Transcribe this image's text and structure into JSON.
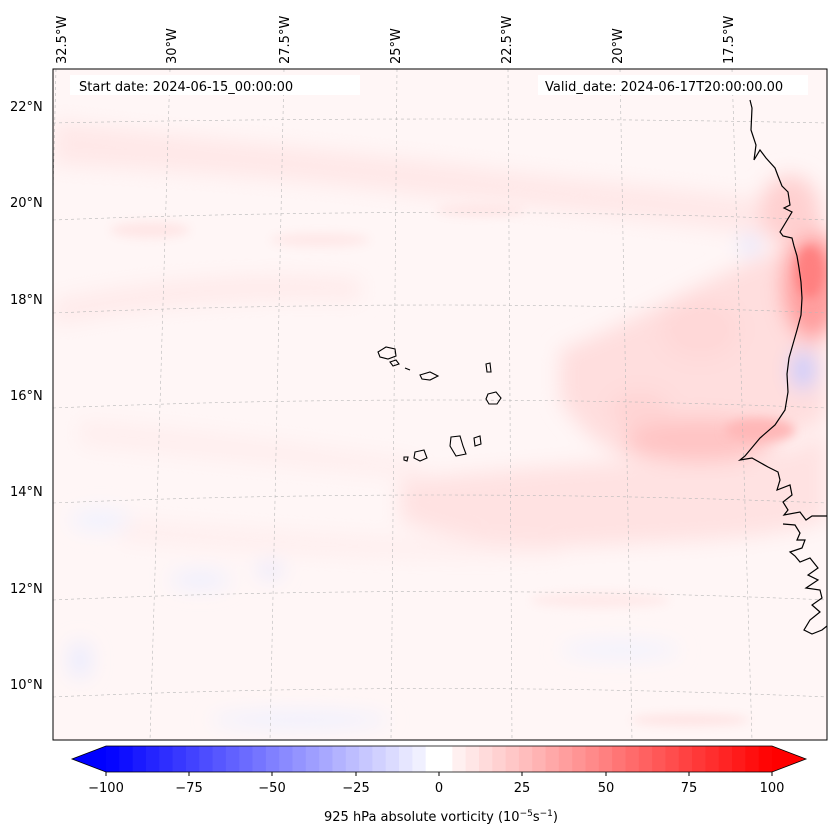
{
  "header": {
    "start_date": "Start date: 2024-06-15_00:00:00",
    "valid_date": "Valid_date: 2024-06-17T20:00:00.00"
  },
  "longitude_labels": [
    "32.5°W",
    "30°W",
    "27.5°W",
    "25°W",
    "22.5°W",
    "20°W",
    "17.5°W"
  ],
  "latitude_labels": [
    "22°N",
    "20°N",
    "18°N",
    "16°N",
    "14°N",
    "12°N",
    "10°N"
  ],
  "colorbar": {
    "ticks": [
      "−100",
      "−75",
      "−50",
      "−25",
      "0",
      "25",
      "50",
      "75",
      "100"
    ],
    "label": "925 hPa absolute vorticity (10",
    "label_exp1": "−5",
    "label_mid": "s",
    "label_exp2": "−1",
    "label_end": ")",
    "min": -100,
    "max": 100,
    "levels": 50
  },
  "colors": {
    "negative": "#0000ff",
    "neutral": "#ffffff",
    "positive": "#ff0000"
  }
}
